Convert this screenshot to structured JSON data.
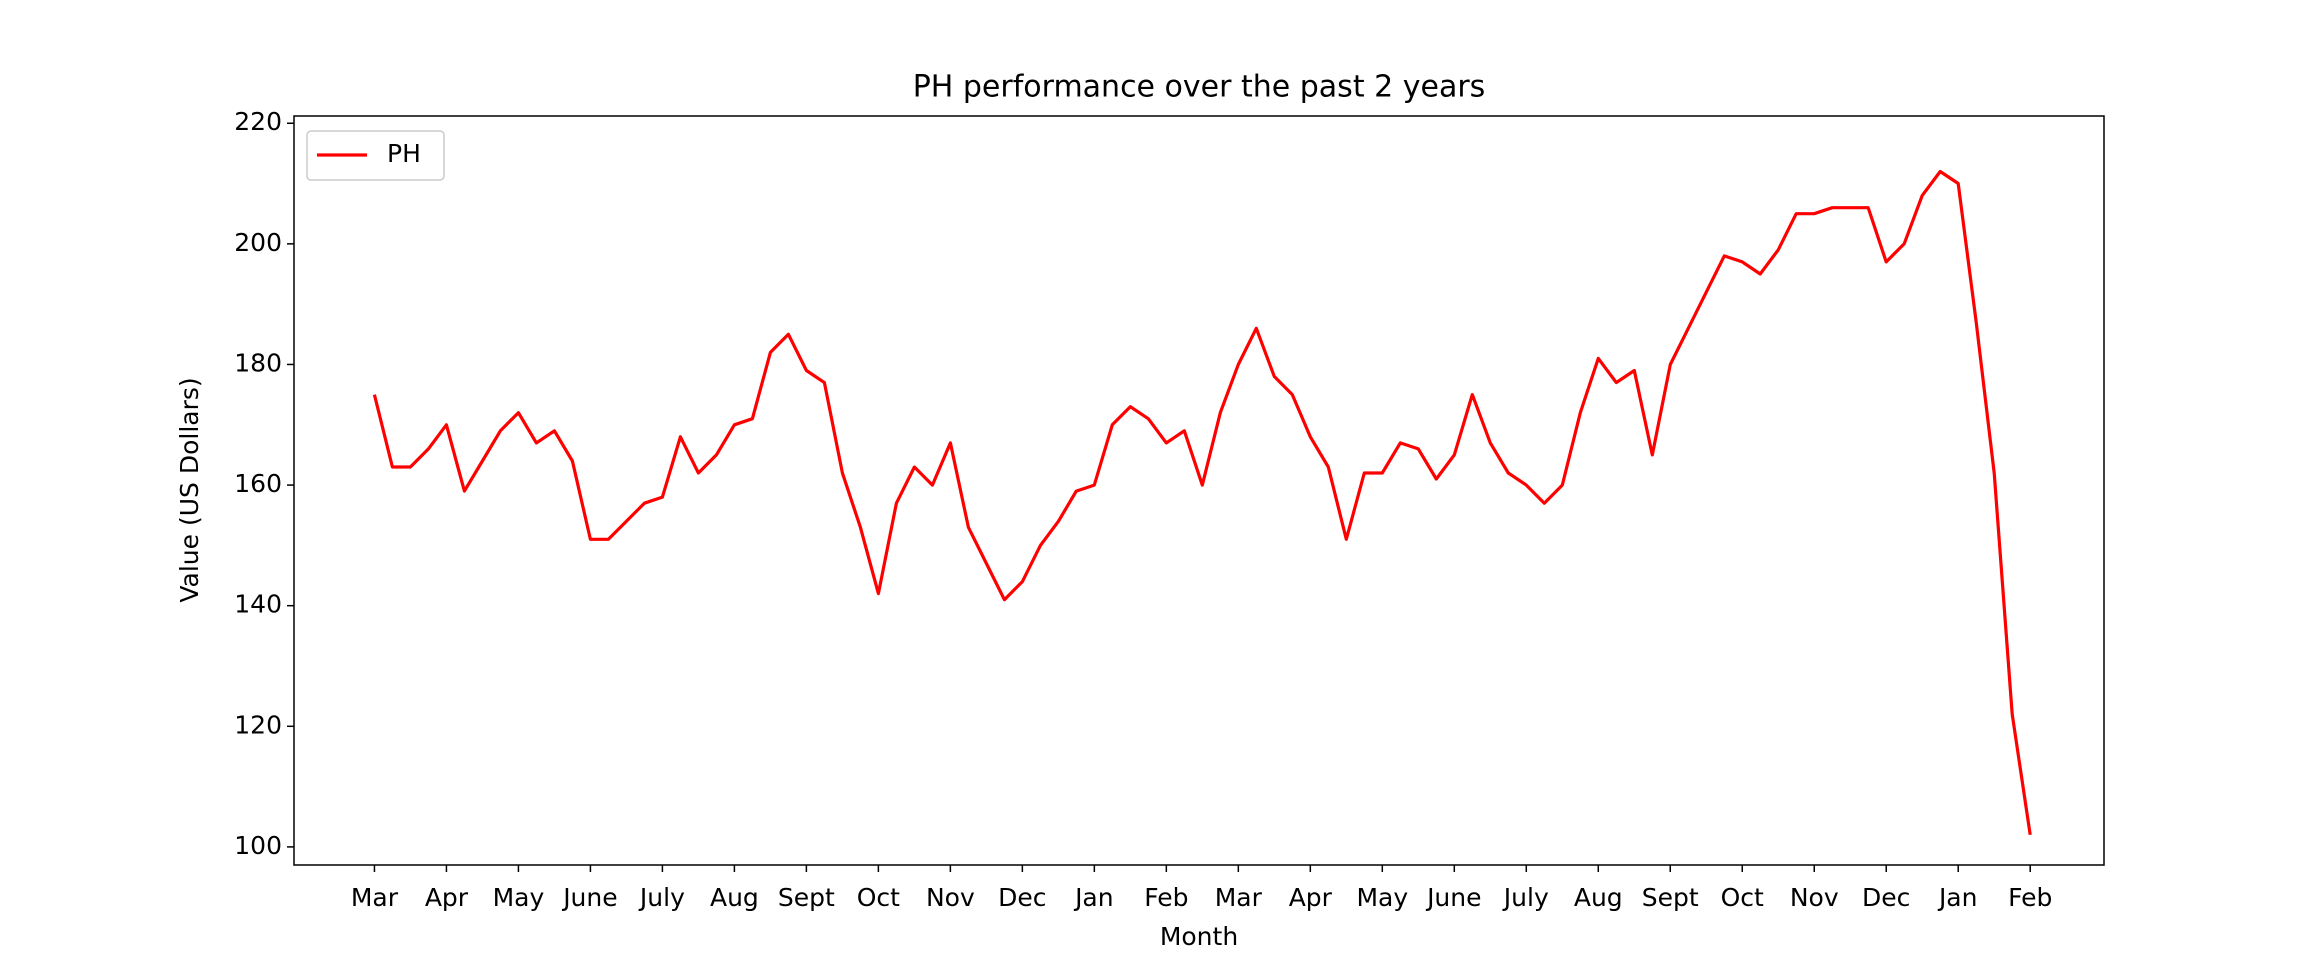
{
  "chart_data": {
    "type": "line",
    "title": "PH performance over the past 2 years",
    "x_label": "Month",
    "y_label": "Value (US Dollars)",
    "categories": [
      "Mar",
      null,
      null,
      null,
      "Apr",
      null,
      null,
      null,
      "May",
      null,
      null,
      null,
      "June",
      null,
      null,
      null,
      "July",
      null,
      null,
      null,
      "Aug",
      null,
      null,
      null,
      "Sept",
      null,
      null,
      null,
      "Oct",
      null,
      null,
      null,
      "Nov",
      null,
      null,
      null,
      "Dec",
      null,
      null,
      null,
      "Jan",
      null,
      null,
      null,
      "Feb",
      null,
      null,
      null,
      "Mar",
      null,
      null,
      null,
      "Apr",
      null,
      null,
      null,
      "May",
      null,
      null,
      null,
      "June",
      null,
      null,
      null,
      "July",
      null,
      null,
      null,
      "Aug",
      null,
      null,
      null,
      "Sept",
      null,
      null,
      null,
      "Oct",
      null,
      null,
      null,
      "Nov",
      null,
      null,
      null,
      "Dec",
      null,
      null,
      null,
      "Jan",
      null,
      null,
      null,
      "Feb"
    ],
    "series": [
      {
        "name": "PH",
        "color": "#ff0000",
        "values": [
          175,
          163,
          163,
          166,
          170,
          159,
          164,
          169,
          172,
          167,
          169,
          164,
          151,
          151,
          154,
          157,
          158,
          168,
          162,
          165,
          170,
          171,
          182,
          185,
          179,
          177,
          162,
          153,
          142,
          157,
          163,
          160,
          167,
          153,
          147,
          141,
          144,
          150,
          154,
          159,
          160,
          170,
          173,
          171,
          167,
          169,
          160,
          172,
          180,
          186,
          178,
          175,
          168,
          163,
          151,
          162,
          162,
          167,
          166,
          161,
          165,
          175,
          167,
          162,
          160,
          157,
          160,
          172,
          181,
          177,
          179,
          165,
          180,
          186,
          192,
          198,
          197,
          195,
          199,
          205,
          205,
          206,
          206,
          206,
          197,
          200,
          208,
          212,
          210,
          187,
          162,
          122,
          102
        ]
      }
    ],
    "ylim": [
      97,
      221.2
    ],
    "yticks": [
      100,
      120,
      140,
      160,
      180,
      200,
      220
    ],
    "legend": "upper left",
    "grid": false
  }
}
